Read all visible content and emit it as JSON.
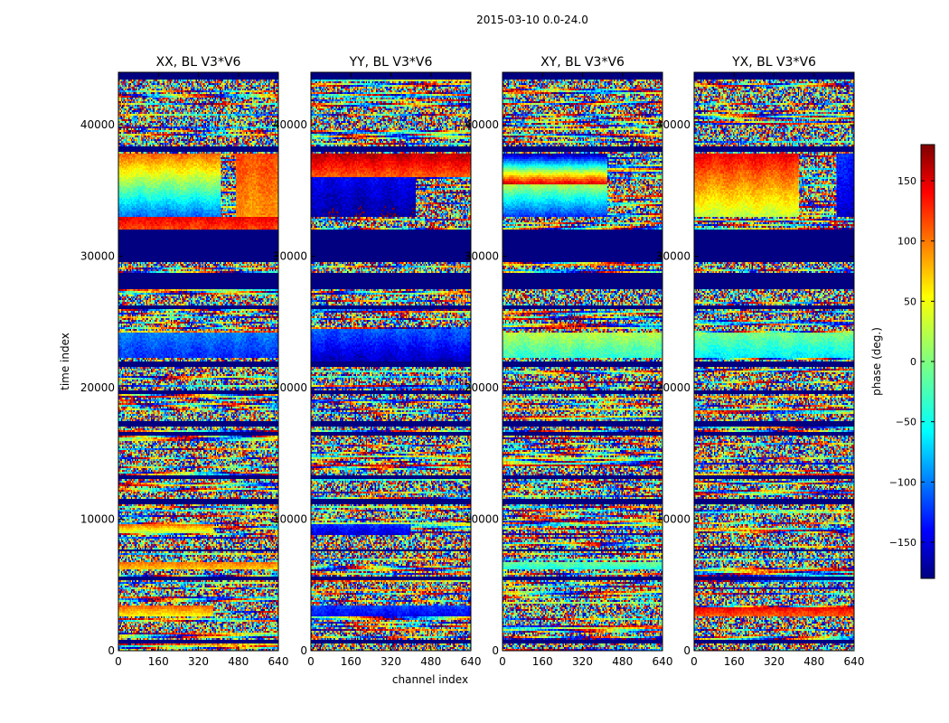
{
  "chart_data": {
    "type": "heatmap",
    "title": "2015-03-10 0.0-24.0",
    "xlabel": "channel index",
    "ylabel": "time index",
    "xlim": [
      0,
      640
    ],
    "ylim": [
      0,
      44000
    ],
    "x_ticks": [
      0,
      160,
      320,
      480,
      640
    ],
    "y_ticks": [
      0,
      10000,
      20000,
      30000,
      40000
    ],
    "x_tick_labels": [
      "0",
      "160",
      "320",
      "480",
      "640"
    ],
    "y_tick_labels": [
      "0",
      "10000",
      "20000",
      "30000",
      "40000"
    ],
    "colormap": "jet",
    "colorbar": {
      "label": "phase (deg.)",
      "range": [
        -180,
        180
      ],
      "ticks": [
        -150,
        -100,
        -50,
        0,
        50,
        100,
        150
      ],
      "tick_labels": [
        "−150",
        "−100",
        "−50",
        "0",
        "50",
        "100",
        "150"
      ]
    },
    "panels": [
      {
        "title": "XX, BL V3*V6",
        "coherent_blocks": [
          {
            "t": [
              33000,
              37800
            ],
            "ch": [
              0,
              410
            ],
            "phase_start": -100,
            "phase_end": 100
          },
          {
            "t": [
              36800,
              37800
            ],
            "ch": [
              0,
              410
            ],
            "phase_start": -30,
            "phase_end": 60
          },
          {
            "t": [
              33000,
              37800
            ],
            "ch": [
              470,
              640
            ],
            "phase_start": 80,
            "phase_end": 110
          },
          {
            "t": [
              32000,
              33000
            ],
            "ch": [
              0,
              640
            ],
            "phase_start": 110,
            "phase_end": 140
          },
          {
            "t": [
              22300,
              24200
            ],
            "ch": [
              0,
              640
            ],
            "phase_start": -120,
            "phase_end": -90
          },
          {
            "t": [
              2600,
              3500
            ],
            "ch": [
              0,
              380
            ],
            "phase_start": 40,
            "phase_end": 110
          },
          {
            "t": [
              6200,
              6800
            ],
            "ch": [
              0,
              640
            ],
            "phase_start": 60,
            "phase_end": 100
          },
          {
            "t": [
              9000,
              9600
            ],
            "ch": [
              0,
              380
            ],
            "phase_start": 20,
            "phase_end": 100
          }
        ]
      },
      {
        "title": "YY, BL V3*V6",
        "coherent_blocks": [
          {
            "t": [
              36000,
              37800
            ],
            "ch": [
              0,
              640
            ],
            "phase_start": 100,
            "phase_end": 160
          },
          {
            "t": [
              33000,
              36000
            ],
            "ch": [
              0,
              420
            ],
            "phase_start": -170,
            "phase_end": -140
          },
          {
            "t": [
              22000,
              24500
            ],
            "ch": [
              0,
              640
            ],
            "phase_start": -160,
            "phase_end": -100
          },
          {
            "t": [
              8800,
              9600
            ],
            "ch": [
              0,
              400
            ],
            "phase_start": -150,
            "phase_end": -120
          },
          {
            "t": [
              2600,
              3500
            ],
            "ch": [
              0,
              640
            ],
            "phase_start": -140,
            "phase_end": -110
          }
        ]
      },
      {
        "title": "XY, BL V3*V6",
        "coherent_blocks": [
          {
            "t": [
              35500,
              37800
            ],
            "ch": [
              0,
              420
            ],
            "phase_start": 150,
            "phase_end": -170
          },
          {
            "t": [
              33000,
              35500
            ],
            "ch": [
              0,
              420
            ],
            "phase_start": -120,
            "phase_end": 20
          },
          {
            "t": [
              22300,
              24200
            ],
            "ch": [
              0,
              640
            ],
            "phase_start": -30,
            "phase_end": 20
          },
          {
            "t": [
              6200,
              6800
            ],
            "ch": [
              0,
              640
            ],
            "phase_start": -40,
            "phase_end": 0
          }
        ]
      },
      {
        "title": "YX, BL V3*V6",
        "coherent_blocks": [
          {
            "t": [
              33000,
              37800
            ],
            "ch": [
              0,
              420
            ],
            "phase_start": 20,
            "phase_end": 140
          },
          {
            "t": [
              33000,
              37800
            ],
            "ch": [
              570,
              640
            ],
            "phase_start": -160,
            "phase_end": -120
          },
          {
            "t": [
              22300,
              24200
            ],
            "ch": [
              0,
              640
            ],
            "phase_start": -50,
            "phase_end": 0
          },
          {
            "t": [
              2600,
              3300
            ],
            "ch": [
              0,
              640
            ],
            "phase_start": 100,
            "phase_end": 140
          }
        ]
      }
    ],
    "flagged_time_ranges": [
      [
        43500,
        44000
      ],
      [
        38000,
        38300
      ],
      [
        29500,
        32000
      ],
      [
        27500,
        28700
      ],
      [
        26000,
        26300
      ],
      [
        21600,
        22000
      ],
      [
        19500,
        19800
      ],
      [
        17000,
        17400
      ],
      [
        16400,
        16700
      ],
      [
        13000,
        13300
      ],
      [
        11200,
        11500
      ],
      [
        7500,
        7700
      ],
      [
        5400,
        5600
      ],
      [
        500,
        800
      ]
    ]
  }
}
